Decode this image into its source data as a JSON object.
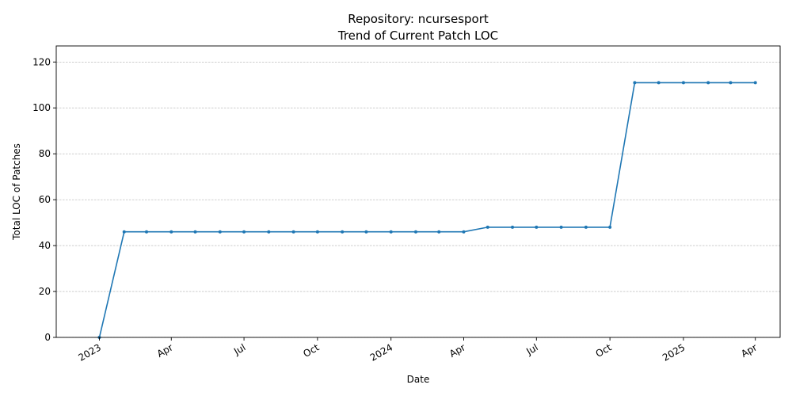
{
  "chart_data": {
    "type": "line",
    "title": "Repository: ncursesport",
    "subtitle": "Trend of Current Patch LOC",
    "xlabel": "Date",
    "ylabel": "Total LOC of Patches",
    "ylim": [
      0,
      127
    ],
    "xlim": [
      "2022-11-08",
      "2025-05-02"
    ],
    "grid": "y-dashed",
    "color": "#1f77b4",
    "y_ticks": [
      0,
      20,
      40,
      60,
      80,
      100,
      120
    ],
    "x_ticks": [
      {
        "date": "2023-01-01",
        "label": "2023"
      },
      {
        "date": "2023-04-01",
        "label": "Apr"
      },
      {
        "date": "2023-07-01",
        "label": "Jul"
      },
      {
        "date": "2023-10-01",
        "label": "Oct"
      },
      {
        "date": "2024-01-01",
        "label": "2024"
      },
      {
        "date": "2024-04-01",
        "label": "Apr"
      },
      {
        "date": "2024-07-01",
        "label": "Jul"
      },
      {
        "date": "2024-10-01",
        "label": "Oct"
      },
      {
        "date": "2025-01-01",
        "label": "2025"
      },
      {
        "date": "2025-04-01",
        "label": "Apr"
      }
    ],
    "series": [
      {
        "points": [
          {
            "x": "2023-01-01",
            "y": 0
          },
          {
            "x": "2023-02-01",
            "y": 46
          },
          {
            "x": "2023-03-01",
            "y": 46
          },
          {
            "x": "2023-04-01",
            "y": 46
          },
          {
            "x": "2023-05-01",
            "y": 46
          },
          {
            "x": "2023-06-01",
            "y": 46
          },
          {
            "x": "2023-07-01",
            "y": 46
          },
          {
            "x": "2023-08-01",
            "y": 46
          },
          {
            "x": "2023-09-01",
            "y": 46
          },
          {
            "x": "2023-10-01",
            "y": 46
          },
          {
            "x": "2023-11-01",
            "y": 46
          },
          {
            "x": "2023-12-01",
            "y": 46
          },
          {
            "x": "2024-01-01",
            "y": 46
          },
          {
            "x": "2024-02-01",
            "y": 46
          },
          {
            "x": "2024-03-01",
            "y": 46
          },
          {
            "x": "2024-04-01",
            "y": 46
          },
          {
            "x": "2024-05-01",
            "y": 48
          },
          {
            "x": "2024-06-01",
            "y": 48
          },
          {
            "x": "2024-07-01",
            "y": 48
          },
          {
            "x": "2024-08-01",
            "y": 48
          },
          {
            "x": "2024-09-01",
            "y": 48
          },
          {
            "x": "2024-10-01",
            "y": 48
          },
          {
            "x": "2024-11-01",
            "y": 111
          },
          {
            "x": "2024-12-01",
            "y": 111
          },
          {
            "x": "2025-01-01",
            "y": 111
          },
          {
            "x": "2025-02-01",
            "y": 111
          },
          {
            "x": "2025-03-01",
            "y": 111
          },
          {
            "x": "2025-04-01",
            "y": 111
          }
        ]
      }
    ]
  }
}
